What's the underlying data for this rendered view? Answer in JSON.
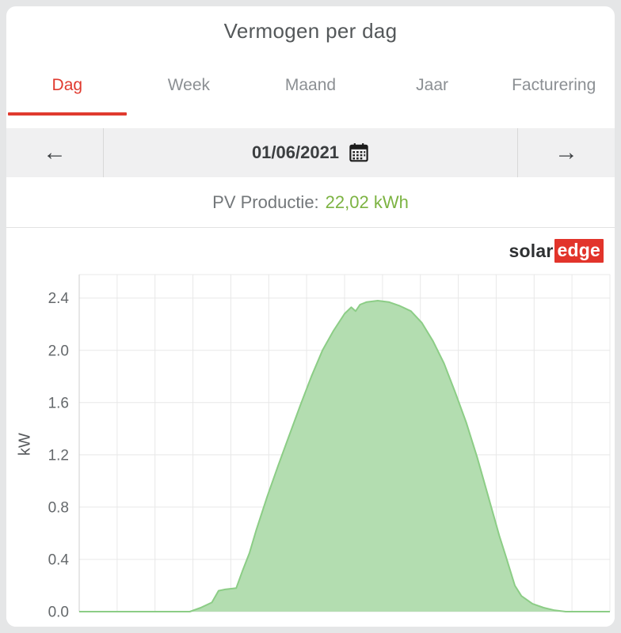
{
  "header": {
    "title": "Vermogen per dag"
  },
  "tabs": {
    "items": [
      {
        "label": "Dag",
        "active": true
      },
      {
        "label": "Week",
        "active": false
      },
      {
        "label": "Maand",
        "active": false
      },
      {
        "label": "Jaar",
        "active": false
      },
      {
        "label": "Facturering",
        "active": false
      }
    ]
  },
  "date_nav": {
    "prev_glyph": "←",
    "next_glyph": "→",
    "date": "01/06/2021"
  },
  "production": {
    "label": "PV Productie:",
    "value": "22,02 kWh"
  },
  "logo": {
    "dark": "solar",
    "accent": "edge"
  },
  "colors": {
    "accent_red": "#e03a2f",
    "value_green": "#7cb342",
    "logo_red": "#e2342b",
    "chart_fill": "#b3ddb0",
    "chart_line": "#8ccd86"
  },
  "chart_data": {
    "type": "area",
    "series_name": "PV Productie",
    "title": "Vermogen per dag",
    "xlabel": "",
    "ylabel": "kW",
    "xlim": [
      0,
      24
    ],
    "ylim": [
      0,
      2.58
    ],
    "yticks": [
      0,
      0.4,
      0.8,
      1.2,
      1.6,
      2.0,
      2.4
    ],
    "ytick_labels": [
      "0.0",
      "0.4",
      "0.8",
      "1.2",
      "1.6",
      "2.0",
      "2.4"
    ],
    "grid": true,
    "v_grid_intervals": 14,
    "legend": "none",
    "fill_color": "#b3ddb0",
    "line_color": "#8ccd86",
    "x": [
      0,
      5,
      5.5,
      6,
      6.3,
      6.6,
      7.1,
      7.4,
      7.7,
      8,
      8.5,
      9,
      9.5,
      10,
      10.5,
      11,
      11.5,
      12,
      12.3,
      12.5,
      12.7,
      13,
      13.5,
      14,
      14.5,
      15,
      15.5,
      16,
      16.5,
      17,
      17.5,
      18,
      18.5,
      19,
      19.3,
      19.7,
      20,
      20.5,
      21,
      21.5,
      22,
      24
    ],
    "values": [
      0,
      0,
      0.03,
      0.07,
      0.16,
      0.17,
      0.18,
      0.32,
      0.45,
      0.62,
      0.88,
      1.12,
      1.35,
      1.58,
      1.8,
      2.0,
      2.15,
      2.28,
      2.33,
      2.3,
      2.35,
      2.37,
      2.38,
      2.37,
      2.34,
      2.3,
      2.21,
      2.07,
      1.9,
      1.68,
      1.45,
      1.18,
      0.88,
      0.58,
      0.42,
      0.2,
      0.12,
      0.06,
      0.03,
      0.01,
      0,
      0
    ],
    "daily_total_kwh": "22,02"
  }
}
